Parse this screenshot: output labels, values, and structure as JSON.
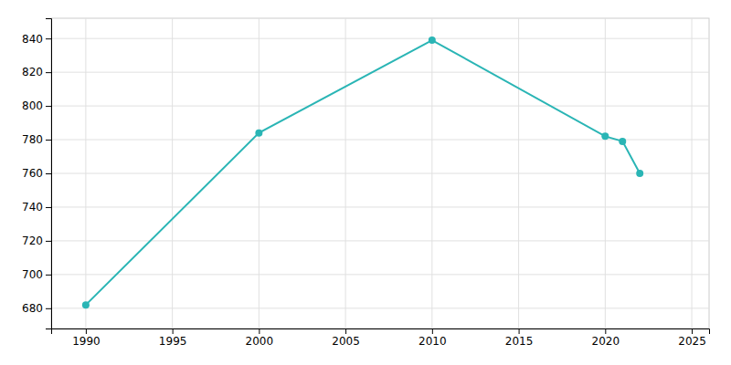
{
  "chart_data": {
    "type": "line",
    "x": [
      1990,
      2000,
      2010,
      2020,
      2021,
      2022
    ],
    "values": [
      682,
      784,
      839,
      782,
      779,
      760
    ],
    "color": "#2ab5b5",
    "marker": "circle",
    "xlim": [
      1988,
      2026
    ],
    "ylim": [
      668,
      852
    ],
    "xticks": [
      1990,
      1995,
      2000,
      2005,
      2010,
      2015,
      2020,
      2025
    ],
    "yticks": [
      680,
      700,
      720,
      740,
      760,
      780,
      800,
      820,
      840
    ],
    "grid": true
  }
}
